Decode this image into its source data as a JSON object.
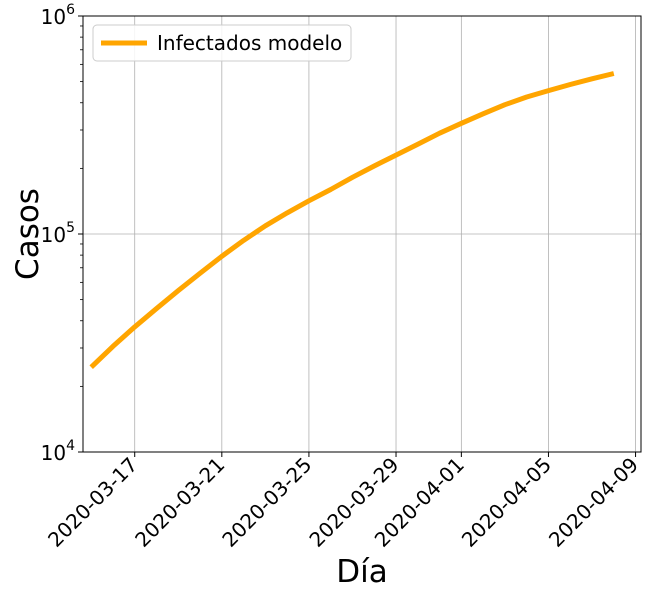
{
  "chart_data": {
    "type": "line",
    "title": "",
    "xlabel": "Día",
    "ylabel": "Casos",
    "yscale": "log",
    "ylim": [
      10000,
      1000000
    ],
    "xlim": [
      "2020-03-14T15:00",
      "2020-04-09T06:00"
    ],
    "grid": true,
    "legend": {
      "position": "top-left",
      "entries": [
        "Infectados modelo"
      ]
    },
    "x_ticks": [
      "2020-03-17",
      "2020-03-21",
      "2020-03-25",
      "2020-03-29",
      "2020-04-01",
      "2020-04-05",
      "2020-04-09"
    ],
    "y_ticks": [
      {
        "value": 10000,
        "base": "10",
        "exp": "4"
      },
      {
        "value": 100000,
        "base": "10",
        "exp": "5"
      },
      {
        "value": 1000000,
        "base": "10",
        "exp": "6"
      }
    ],
    "series": [
      {
        "name": "Infectados modelo",
        "color": "#ffa500",
        "x": [
          "2020-03-15",
          "2020-03-16",
          "2020-03-17",
          "2020-03-18",
          "2020-03-19",
          "2020-03-20",
          "2020-03-21",
          "2020-03-22",
          "2020-03-23",
          "2020-03-24",
          "2020-03-25",
          "2020-03-26",
          "2020-03-27",
          "2020-03-28",
          "2020-03-29",
          "2020-03-30",
          "2020-03-31",
          "2020-04-01",
          "2020-04-02",
          "2020-04-03",
          "2020-04-04",
          "2020-04-05",
          "2020-04-06",
          "2020-04-07",
          "2020-04-08"
        ],
        "values": [
          24500,
          30500,
          37500,
          45500,
          55000,
          66000,
          79000,
          93500,
          109000,
          125000,
          142000,
          160000,
          182000,
          205000,
          230000,
          258000,
          290000,
          322000,
          356000,
          392000,
          425000,
          455000,
          485000,
          515000,
          545000
        ]
      }
    ]
  }
}
